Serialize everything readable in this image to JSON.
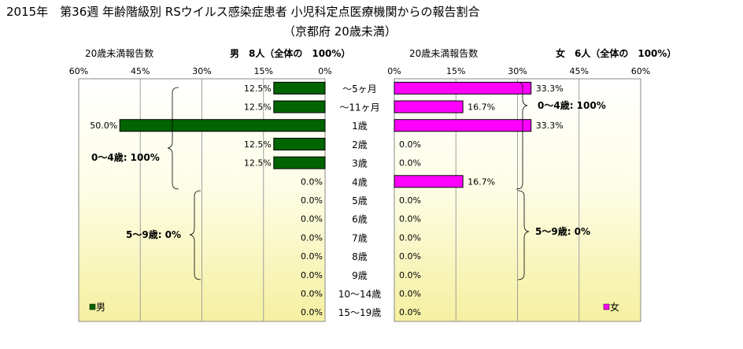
{
  "chart_data": {
    "type": "bar",
    "title": "2015年　第36週 年齢階級別 RSウイルス感染症患者 小児科定点医療機関からの報告割合",
    "subtitle": "（京都府 20歳未満）",
    "categories": [
      "～5ヶ月",
      "～11ヶ月",
      "1歳",
      "2歳",
      "3歳",
      "4歳",
      "5歳",
      "6歳",
      "7歳",
      "8歳",
      "9歳",
      "10～14歳",
      "15～19歳"
    ],
    "axis_ticks": [
      "60%",
      "45%",
      "30%",
      "15%",
      "0%"
    ],
    "axis_ticks_right": [
      "0%",
      "15%",
      "30%",
      "45%",
      "60%"
    ],
    "xlim": [
      0,
      60
    ],
    "grid": true,
    "series": [
      {
        "name": "男",
        "axis_label": "20歳未満報告数",
        "header": "男　8人（全体の　100%）",
        "color": "#006400",
        "values": [
          12.5,
          12.5,
          50.0,
          12.5,
          12.5,
          0.0,
          0.0,
          0.0,
          0.0,
          0.0,
          0.0,
          0.0,
          0.0
        ],
        "value_labels": [
          "12.5%",
          "12.5%",
          "50.0%",
          "12.5%",
          "12.5%",
          "0.0%",
          "0.0%",
          "0.0%",
          "0.0%",
          "0.0%",
          "0.0%",
          "0.0%",
          "0.0%"
        ],
        "legend": "男",
        "group_labels": [
          "0～4歳: 100%",
          "5～9歳: 0%"
        ]
      },
      {
        "name": "女",
        "axis_label": "20歳未満報告数",
        "header": "女　6人（全体の　100%）",
        "color": "#ff00ff",
        "values": [
          33.3,
          16.7,
          33.3,
          0.0,
          0.0,
          16.7,
          0.0,
          0.0,
          0.0,
          0.0,
          0.0,
          0.0,
          0.0
        ],
        "value_labels": [
          "33.3%",
          "16.7%",
          "33.3%",
          "0.0%",
          "0.0%",
          "16.7%",
          "0.0%",
          "0.0%",
          "0.0%",
          "0.0%",
          "0.0%",
          "0.0%",
          "0.0%"
        ],
        "legend": "女",
        "group_labels": [
          "0～4歳: 100%",
          "5～9歳: 0%"
        ]
      }
    ]
  }
}
